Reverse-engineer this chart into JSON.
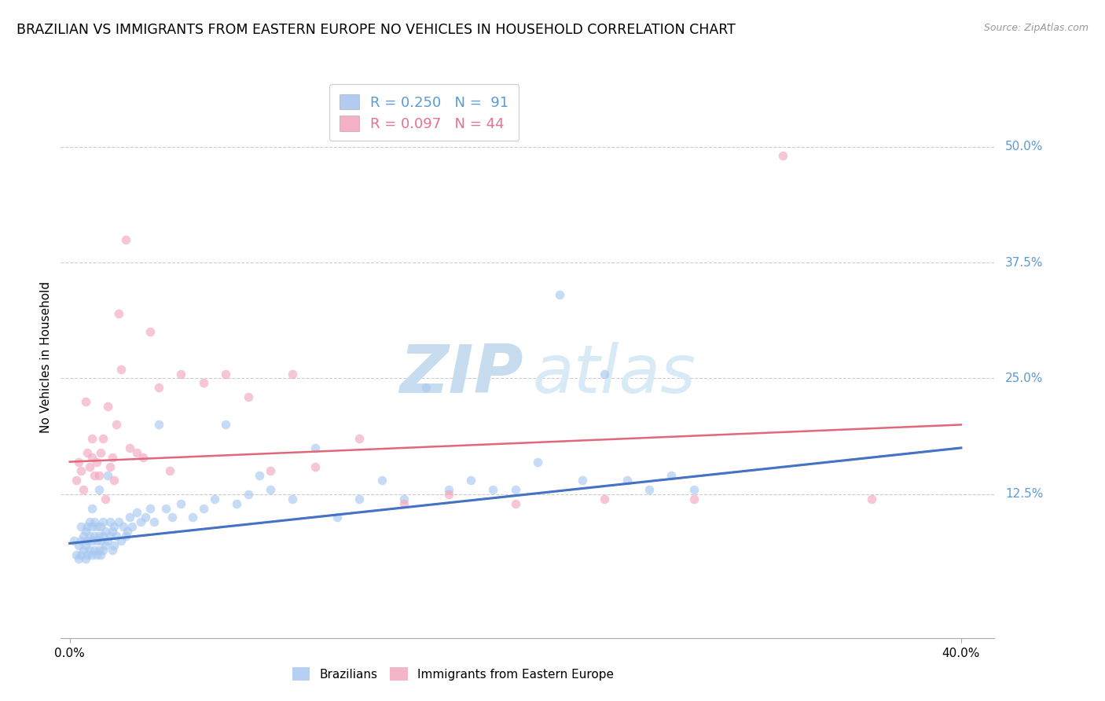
{
  "title": "BRAZILIAN VS IMMIGRANTS FROM EASTERN EUROPE NO VEHICLES IN HOUSEHOLD CORRELATION CHART",
  "source": "Source: ZipAtlas.com",
  "ylabel": "No Vehicles in Household",
  "ytick_labels": [
    "50.0%",
    "37.5%",
    "25.0%",
    "12.5%"
  ],
  "ytick_values": [
    0.5,
    0.375,
    0.25,
    0.125
  ],
  "xtick_labels": [
    "0.0%",
    "40.0%"
  ],
  "xtick_values": [
    0.0,
    0.4
  ],
  "xlim": [
    -0.004,
    0.415
  ],
  "ylim": [
    -0.03,
    0.575
  ],
  "legend_r_blue": "R = 0.250",
  "legend_n_blue": "N =  91",
  "legend_r_pink": "R = 0.097",
  "legend_n_pink": "N = 44",
  "color_blue": "#A8C8F0",
  "color_pink": "#F4A8C0",
  "color_blue_dark": "#5B9BD5",
  "color_pink_dark": "#E87090",
  "watermark_zip": "ZIP",
  "watermark_atlas": "atlas",
  "blue_scatter_x": [
    0.002,
    0.003,
    0.004,
    0.004,
    0.005,
    0.005,
    0.005,
    0.006,
    0.006,
    0.007,
    0.007,
    0.007,
    0.008,
    0.008,
    0.008,
    0.009,
    0.009,
    0.009,
    0.01,
    0.01,
    0.01,
    0.01,
    0.011,
    0.011,
    0.011,
    0.012,
    0.012,
    0.012,
    0.013,
    0.013,
    0.013,
    0.014,
    0.014,
    0.014,
    0.015,
    0.015,
    0.015,
    0.016,
    0.016,
    0.017,
    0.017,
    0.018,
    0.018,
    0.019,
    0.019,
    0.02,
    0.02,
    0.021,
    0.022,
    0.023,
    0.024,
    0.025,
    0.026,
    0.027,
    0.028,
    0.03,
    0.032,
    0.034,
    0.036,
    0.038,
    0.04,
    0.043,
    0.046,
    0.05,
    0.055,
    0.06,
    0.065,
    0.07,
    0.075,
    0.08,
    0.085,
    0.09,
    0.1,
    0.11,
    0.12,
    0.13,
    0.14,
    0.15,
    0.16,
    0.17,
    0.18,
    0.19,
    0.2,
    0.21,
    0.22,
    0.23,
    0.24,
    0.25,
    0.26,
    0.27,
    0.28
  ],
  "blue_scatter_y": [
    0.075,
    0.06,
    0.07,
    0.055,
    0.06,
    0.075,
    0.09,
    0.065,
    0.08,
    0.055,
    0.07,
    0.085,
    0.06,
    0.075,
    0.09,
    0.065,
    0.08,
    0.095,
    0.06,
    0.075,
    0.09,
    0.11,
    0.065,
    0.08,
    0.095,
    0.06,
    0.075,
    0.09,
    0.065,
    0.08,
    0.13,
    0.06,
    0.075,
    0.09,
    0.065,
    0.08,
    0.095,
    0.07,
    0.085,
    0.075,
    0.145,
    0.08,
    0.095,
    0.065,
    0.085,
    0.07,
    0.09,
    0.08,
    0.095,
    0.075,
    0.09,
    0.08,
    0.085,
    0.1,
    0.09,
    0.105,
    0.095,
    0.1,
    0.11,
    0.095,
    0.2,
    0.11,
    0.1,
    0.115,
    0.1,
    0.11,
    0.12,
    0.2,
    0.115,
    0.125,
    0.145,
    0.13,
    0.12,
    0.175,
    0.1,
    0.12,
    0.14,
    0.12,
    0.24,
    0.13,
    0.14,
    0.13,
    0.13,
    0.16,
    0.34,
    0.14,
    0.255,
    0.14,
    0.13,
    0.145,
    0.13
  ],
  "pink_scatter_x": [
    0.003,
    0.004,
    0.005,
    0.006,
    0.007,
    0.008,
    0.009,
    0.01,
    0.01,
    0.011,
    0.012,
    0.013,
    0.014,
    0.015,
    0.016,
    0.017,
    0.018,
    0.019,
    0.02,
    0.021,
    0.022,
    0.023,
    0.025,
    0.027,
    0.03,
    0.033,
    0.036,
    0.04,
    0.045,
    0.05,
    0.06,
    0.07,
    0.08,
    0.09,
    0.1,
    0.11,
    0.13,
    0.15,
    0.17,
    0.2,
    0.24,
    0.28,
    0.32,
    0.36
  ],
  "pink_scatter_y": [
    0.14,
    0.16,
    0.15,
    0.13,
    0.225,
    0.17,
    0.155,
    0.165,
    0.185,
    0.145,
    0.16,
    0.145,
    0.17,
    0.185,
    0.12,
    0.22,
    0.155,
    0.165,
    0.14,
    0.2,
    0.32,
    0.26,
    0.4,
    0.175,
    0.17,
    0.165,
    0.3,
    0.24,
    0.15,
    0.255,
    0.245,
    0.255,
    0.23,
    0.15,
    0.255,
    0.155,
    0.185,
    0.115,
    0.125,
    0.115,
    0.12,
    0.12,
    0.49,
    0.12
  ],
  "blue_trend_x0": 0.0,
  "blue_trend_x1": 0.4,
  "blue_trend_y0": 0.072,
  "blue_trend_y1": 0.175,
  "pink_trend_x0": 0.0,
  "pink_trend_x1": 0.4,
  "pink_trend_y0": 0.16,
  "pink_trend_y1": 0.2,
  "blue_line_color": "#4472C4",
  "pink_line_color": "#E06878",
  "dash_line_color": "#90BBE8",
  "background_color": "#FFFFFF",
  "grid_color": "#CCCCCC",
  "title_fontsize": 12.5,
  "axis_label_fontsize": 11,
  "tick_label_fontsize": 11,
  "legend_fontsize": 13,
  "watermark_fontsize_zip": 62,
  "watermark_fontsize_atlas": 62,
  "scatter_alpha": 0.65,
  "scatter_size": 70
}
